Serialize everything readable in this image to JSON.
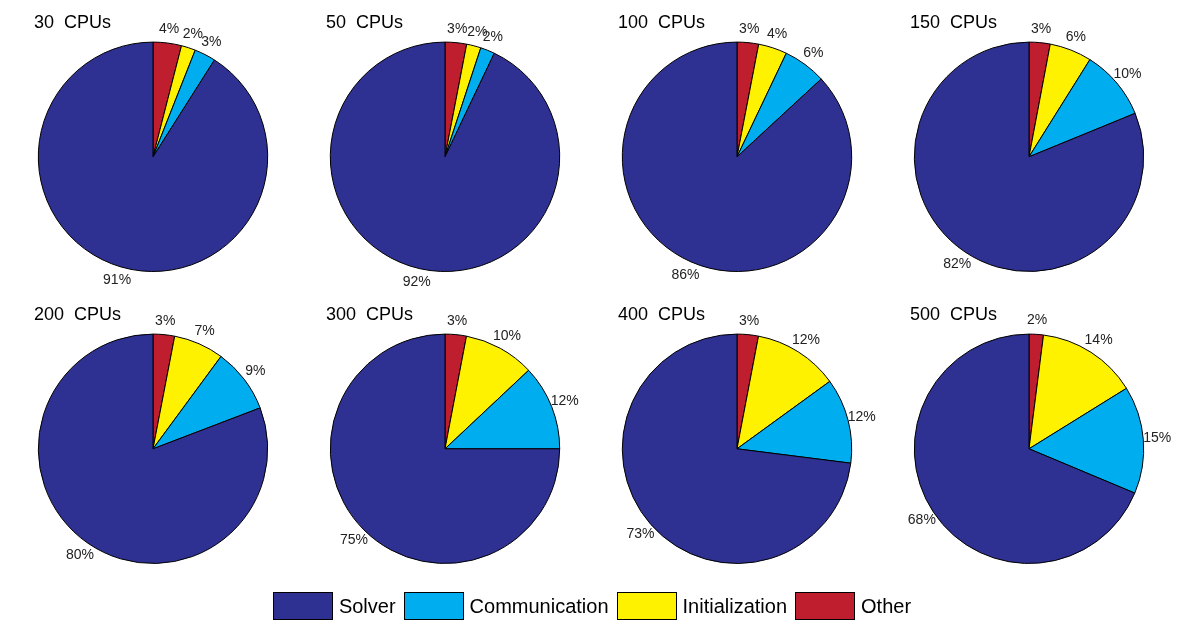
{
  "chart_data": [
    {
      "type": "pie",
      "title": "30  CPUs",
      "categories": [
        "Other",
        "Initialization",
        "Communication",
        "Solver"
      ],
      "values": [
        4,
        2,
        3,
        91
      ],
      "value_labels": [
        "4%",
        "2%",
        "3%",
        "91%"
      ],
      "colors": [
        "#be1e2d",
        "#fff200",
        "#00aeef",
        "#2e3192"
      ],
      "legend": "bottom"
    },
    {
      "type": "pie",
      "title": "50  CPUs",
      "categories": [
        null,
        null,
        null,
        null
      ],
      "values": [
        3,
        2,
        2,
        92
      ],
      "value_labels": [
        "3%",
        "2%",
        "2%",
        "92%"
      ],
      "colors": [
        "#be1e2d",
        "#fff200",
        "#00aeef",
        "#2e3192"
      ]
    },
    {
      "type": "pie",
      "title": "100  CPUs",
      "categories": [
        null,
        null,
        null,
        null
      ],
      "values": [
        3,
        4,
        6,
        86
      ],
      "value_labels": [
        "3%",
        "4%",
        "6%",
        "86%"
      ],
      "colors": [
        "#be1e2d",
        "#fff200",
        "#00aeef",
        "#2e3192"
      ]
    },
    {
      "type": "pie",
      "title": "150  CPUs",
      "categories": [
        null,
        null,
        null,
        null
      ],
      "values": [
        3,
        6,
        10,
        82
      ],
      "value_labels": [
        "3%",
        "6%",
        "10%",
        "82%"
      ],
      "colors": [
        "#be1e2d",
        "#fff200",
        "#00aeef",
        "#2e3192"
      ]
    },
    {
      "type": "pie",
      "title": "200  CPUs",
      "categories": [
        null,
        null,
        null,
        null
      ],
      "values": [
        3,
        7,
        9,
        80
      ],
      "value_labels": [
        "3%",
        "7%",
        "9%",
        "80%"
      ],
      "colors": [
        "#be1e2d",
        "#fff200",
        "#00aeef",
        "#2e3192"
      ]
    },
    {
      "type": "pie",
      "title": "300  CPUs",
      "categories": [
        null,
        null,
        null,
        null
      ],
      "values": [
        3,
        10,
        12,
        75
      ],
      "value_labels": [
        "3%",
        "10%",
        "12%",
        "75%"
      ],
      "colors": [
        "#be1e2d",
        "#fff200",
        "#00aeef",
        "#2e3192"
      ]
    },
    {
      "type": "pie",
      "title": "400  CPUs",
      "categories": [
        null,
        null,
        null,
        null
      ],
      "values": [
        3,
        12,
        12,
        73
      ],
      "value_labels": [
        "3%",
        "12%",
        "12%",
        "73%"
      ],
      "colors": [
        "#be1e2d",
        "#fff200",
        "#00aeef",
        "#2e3192"
      ]
    },
    {
      "type": "pie",
      "title": "500  CPUs",
      "categories": [
        null,
        null,
        null,
        null
      ],
      "values": [
        2,
        14,
        15,
        68
      ],
      "value_labels": [
        "2%",
        "14%",
        "15%",
        "68%"
      ],
      "colors": [
        "#be1e2d",
        "#fff200",
        "#00aeef",
        "#2e3192"
      ]
    }
  ]
}
